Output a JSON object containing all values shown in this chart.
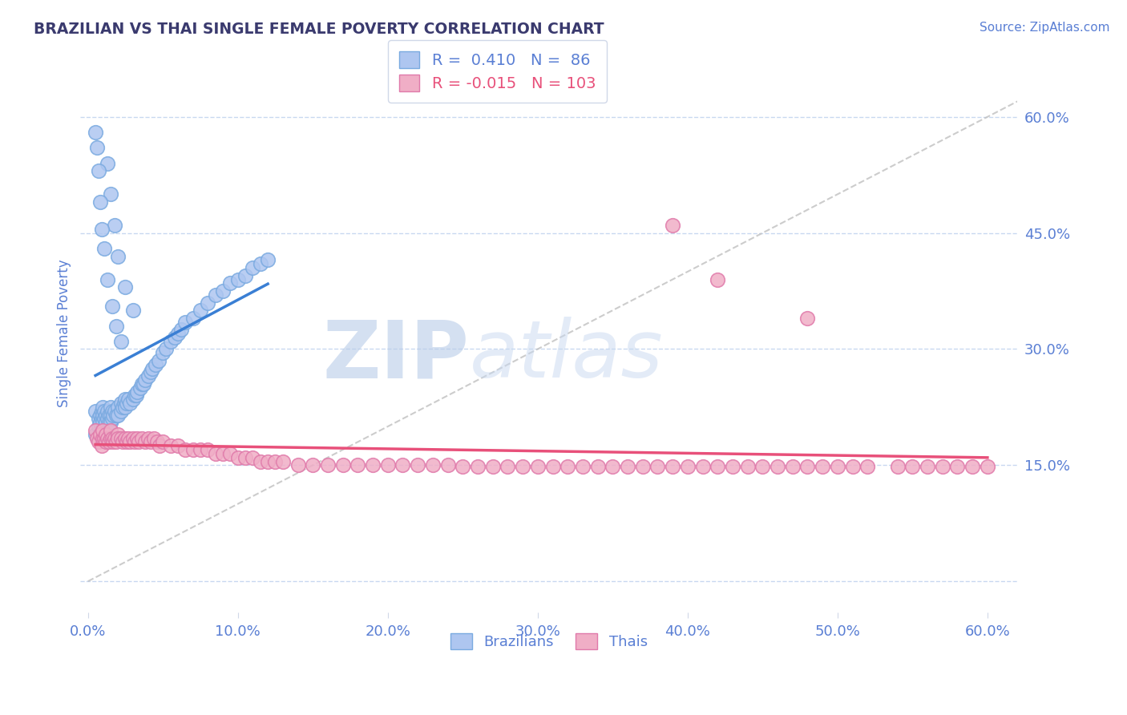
{
  "title": "BRAZILIAN VS THAI SINGLE FEMALE POVERTY CORRELATION CHART",
  "source": "Source: ZipAtlas.com",
  "ylabel": "Single Female Poverty",
  "xlim": [
    -0.005,
    0.62
  ],
  "ylim": [
    -0.04,
    0.68
  ],
  "ytick_vals": [
    0.0,
    0.15,
    0.3,
    0.45,
    0.6
  ],
  "xtick_vals": [
    0.0,
    0.1,
    0.2,
    0.3,
    0.4,
    0.5,
    0.6
  ],
  "yticklabels_right": [
    "",
    "15.0%",
    "30.0%",
    "45.0%",
    "60.0%"
  ],
  "xticklabels": [
    "0.0%",
    "10.0%",
    "20.0%",
    "30.0%",
    "40.0%",
    "50.0%",
    "60.0%"
  ],
  "title_color": "#3a3a6e",
  "tick_color": "#5a7fd4",
  "grid_color": "#c8d8f0",
  "background_color": "#ffffff",
  "brazil_color": "#aec6f0",
  "brazil_edge_color": "#7aaae0",
  "thai_color": "#f0aec6",
  "thai_edge_color": "#e07aaa",
  "brazil_line_color": "#3a7fd4",
  "thai_line_color": "#e8507a",
  "ref_line_color": "#c0c0c0",
  "brazil_R": 0.41,
  "brazil_N": 86,
  "thai_R": -0.015,
  "thai_N": 103,
  "watermark_zip": "ZIP",
  "watermark_atlas": "atlas",
  "watermark_color": "#d0dff5",
  "legend_R_color": "#5a7fd4",
  "legend_thai_color": "#e8507a",
  "brazil_x": [
    0.005,
    0.005,
    0.007,
    0.007,
    0.008,
    0.008,
    0.009,
    0.009,
    0.01,
    0.01,
    0.01,
    0.01,
    0.011,
    0.011,
    0.012,
    0.012,
    0.013,
    0.013,
    0.014,
    0.014,
    0.015,
    0.015,
    0.015,
    0.016,
    0.016,
    0.017,
    0.018,
    0.019,
    0.02,
    0.02,
    0.022,
    0.022,
    0.023,
    0.024,
    0.025,
    0.025,
    0.026,
    0.027,
    0.028,
    0.03,
    0.031,
    0.032,
    0.033,
    0.035,
    0.036,
    0.037,
    0.038,
    0.04,
    0.042,
    0.043,
    0.045,
    0.047,
    0.05,
    0.052,
    0.055,
    0.058,
    0.06,
    0.062,
    0.065,
    0.07,
    0.075,
    0.08,
    0.085,
    0.09,
    0.095,
    0.1,
    0.105,
    0.11,
    0.115,
    0.12,
    0.013,
    0.015,
    0.018,
    0.02,
    0.025,
    0.03,
    0.005,
    0.006,
    0.007,
    0.008,
    0.009,
    0.011,
    0.013,
    0.016,
    0.019,
    0.022
  ],
  "brazil_y": [
    0.22,
    0.19,
    0.21,
    0.2,
    0.215,
    0.205,
    0.22,
    0.21,
    0.225,
    0.215,
    0.205,
    0.195,
    0.22,
    0.21,
    0.215,
    0.205,
    0.22,
    0.21,
    0.215,
    0.205,
    0.225,
    0.215,
    0.205,
    0.22,
    0.21,
    0.215,
    0.22,
    0.215,
    0.225,
    0.215,
    0.23,
    0.22,
    0.225,
    0.23,
    0.235,
    0.225,
    0.23,
    0.235,
    0.23,
    0.235,
    0.24,
    0.24,
    0.245,
    0.25,
    0.255,
    0.255,
    0.26,
    0.265,
    0.27,
    0.275,
    0.28,
    0.285,
    0.295,
    0.3,
    0.31,
    0.315,
    0.32,
    0.325,
    0.335,
    0.34,
    0.35,
    0.36,
    0.37,
    0.375,
    0.385,
    0.39,
    0.395,
    0.405,
    0.41,
    0.415,
    0.54,
    0.5,
    0.46,
    0.42,
    0.38,
    0.35,
    0.58,
    0.56,
    0.53,
    0.49,
    0.455,
    0.43,
    0.39,
    0.355,
    0.33,
    0.31
  ],
  "thai_x": [
    0.005,
    0.006,
    0.007,
    0.008,
    0.009,
    0.01,
    0.01,
    0.011,
    0.012,
    0.012,
    0.013,
    0.014,
    0.015,
    0.015,
    0.016,
    0.017,
    0.018,
    0.019,
    0.02,
    0.02,
    0.022,
    0.023,
    0.025,
    0.026,
    0.027,
    0.028,
    0.03,
    0.031,
    0.033,
    0.034,
    0.036,
    0.038,
    0.04,
    0.042,
    0.044,
    0.046,
    0.048,
    0.05,
    0.055,
    0.06,
    0.065,
    0.07,
    0.075,
    0.08,
    0.085,
    0.09,
    0.095,
    0.1,
    0.105,
    0.11,
    0.115,
    0.12,
    0.125,
    0.13,
    0.14,
    0.15,
    0.16,
    0.17,
    0.18,
    0.19,
    0.2,
    0.21,
    0.22,
    0.23,
    0.24,
    0.25,
    0.26,
    0.27,
    0.28,
    0.29,
    0.3,
    0.31,
    0.32,
    0.33,
    0.34,
    0.35,
    0.36,
    0.37,
    0.38,
    0.39,
    0.4,
    0.41,
    0.42,
    0.43,
    0.44,
    0.45,
    0.46,
    0.47,
    0.48,
    0.49,
    0.5,
    0.51,
    0.52,
    0.54,
    0.55,
    0.56,
    0.57,
    0.58,
    0.59,
    0.6,
    0.39,
    0.42,
    0.48
  ],
  "thai_y": [
    0.195,
    0.185,
    0.18,
    0.19,
    0.175,
    0.185,
    0.195,
    0.185,
    0.18,
    0.19,
    0.185,
    0.18,
    0.185,
    0.195,
    0.185,
    0.18,
    0.185,
    0.18,
    0.19,
    0.185,
    0.185,
    0.18,
    0.185,
    0.18,
    0.185,
    0.18,
    0.185,
    0.18,
    0.185,
    0.18,
    0.185,
    0.18,
    0.185,
    0.18,
    0.185,
    0.18,
    0.175,
    0.18,
    0.175,
    0.175,
    0.17,
    0.17,
    0.17,
    0.17,
    0.165,
    0.165,
    0.165,
    0.16,
    0.16,
    0.16,
    0.155,
    0.155,
    0.155,
    0.155,
    0.15,
    0.15,
    0.15,
    0.15,
    0.15,
    0.15,
    0.15,
    0.15,
    0.15,
    0.15,
    0.15,
    0.148,
    0.148,
    0.148,
    0.148,
    0.148,
    0.148,
    0.148,
    0.148,
    0.148,
    0.148,
    0.148,
    0.148,
    0.148,
    0.148,
    0.148,
    0.148,
    0.148,
    0.148,
    0.148,
    0.148,
    0.148,
    0.148,
    0.148,
    0.148,
    0.148,
    0.148,
    0.148,
    0.148,
    0.148,
    0.148,
    0.148,
    0.148,
    0.148,
    0.148,
    0.148,
    0.46,
    0.39,
    0.34
  ]
}
